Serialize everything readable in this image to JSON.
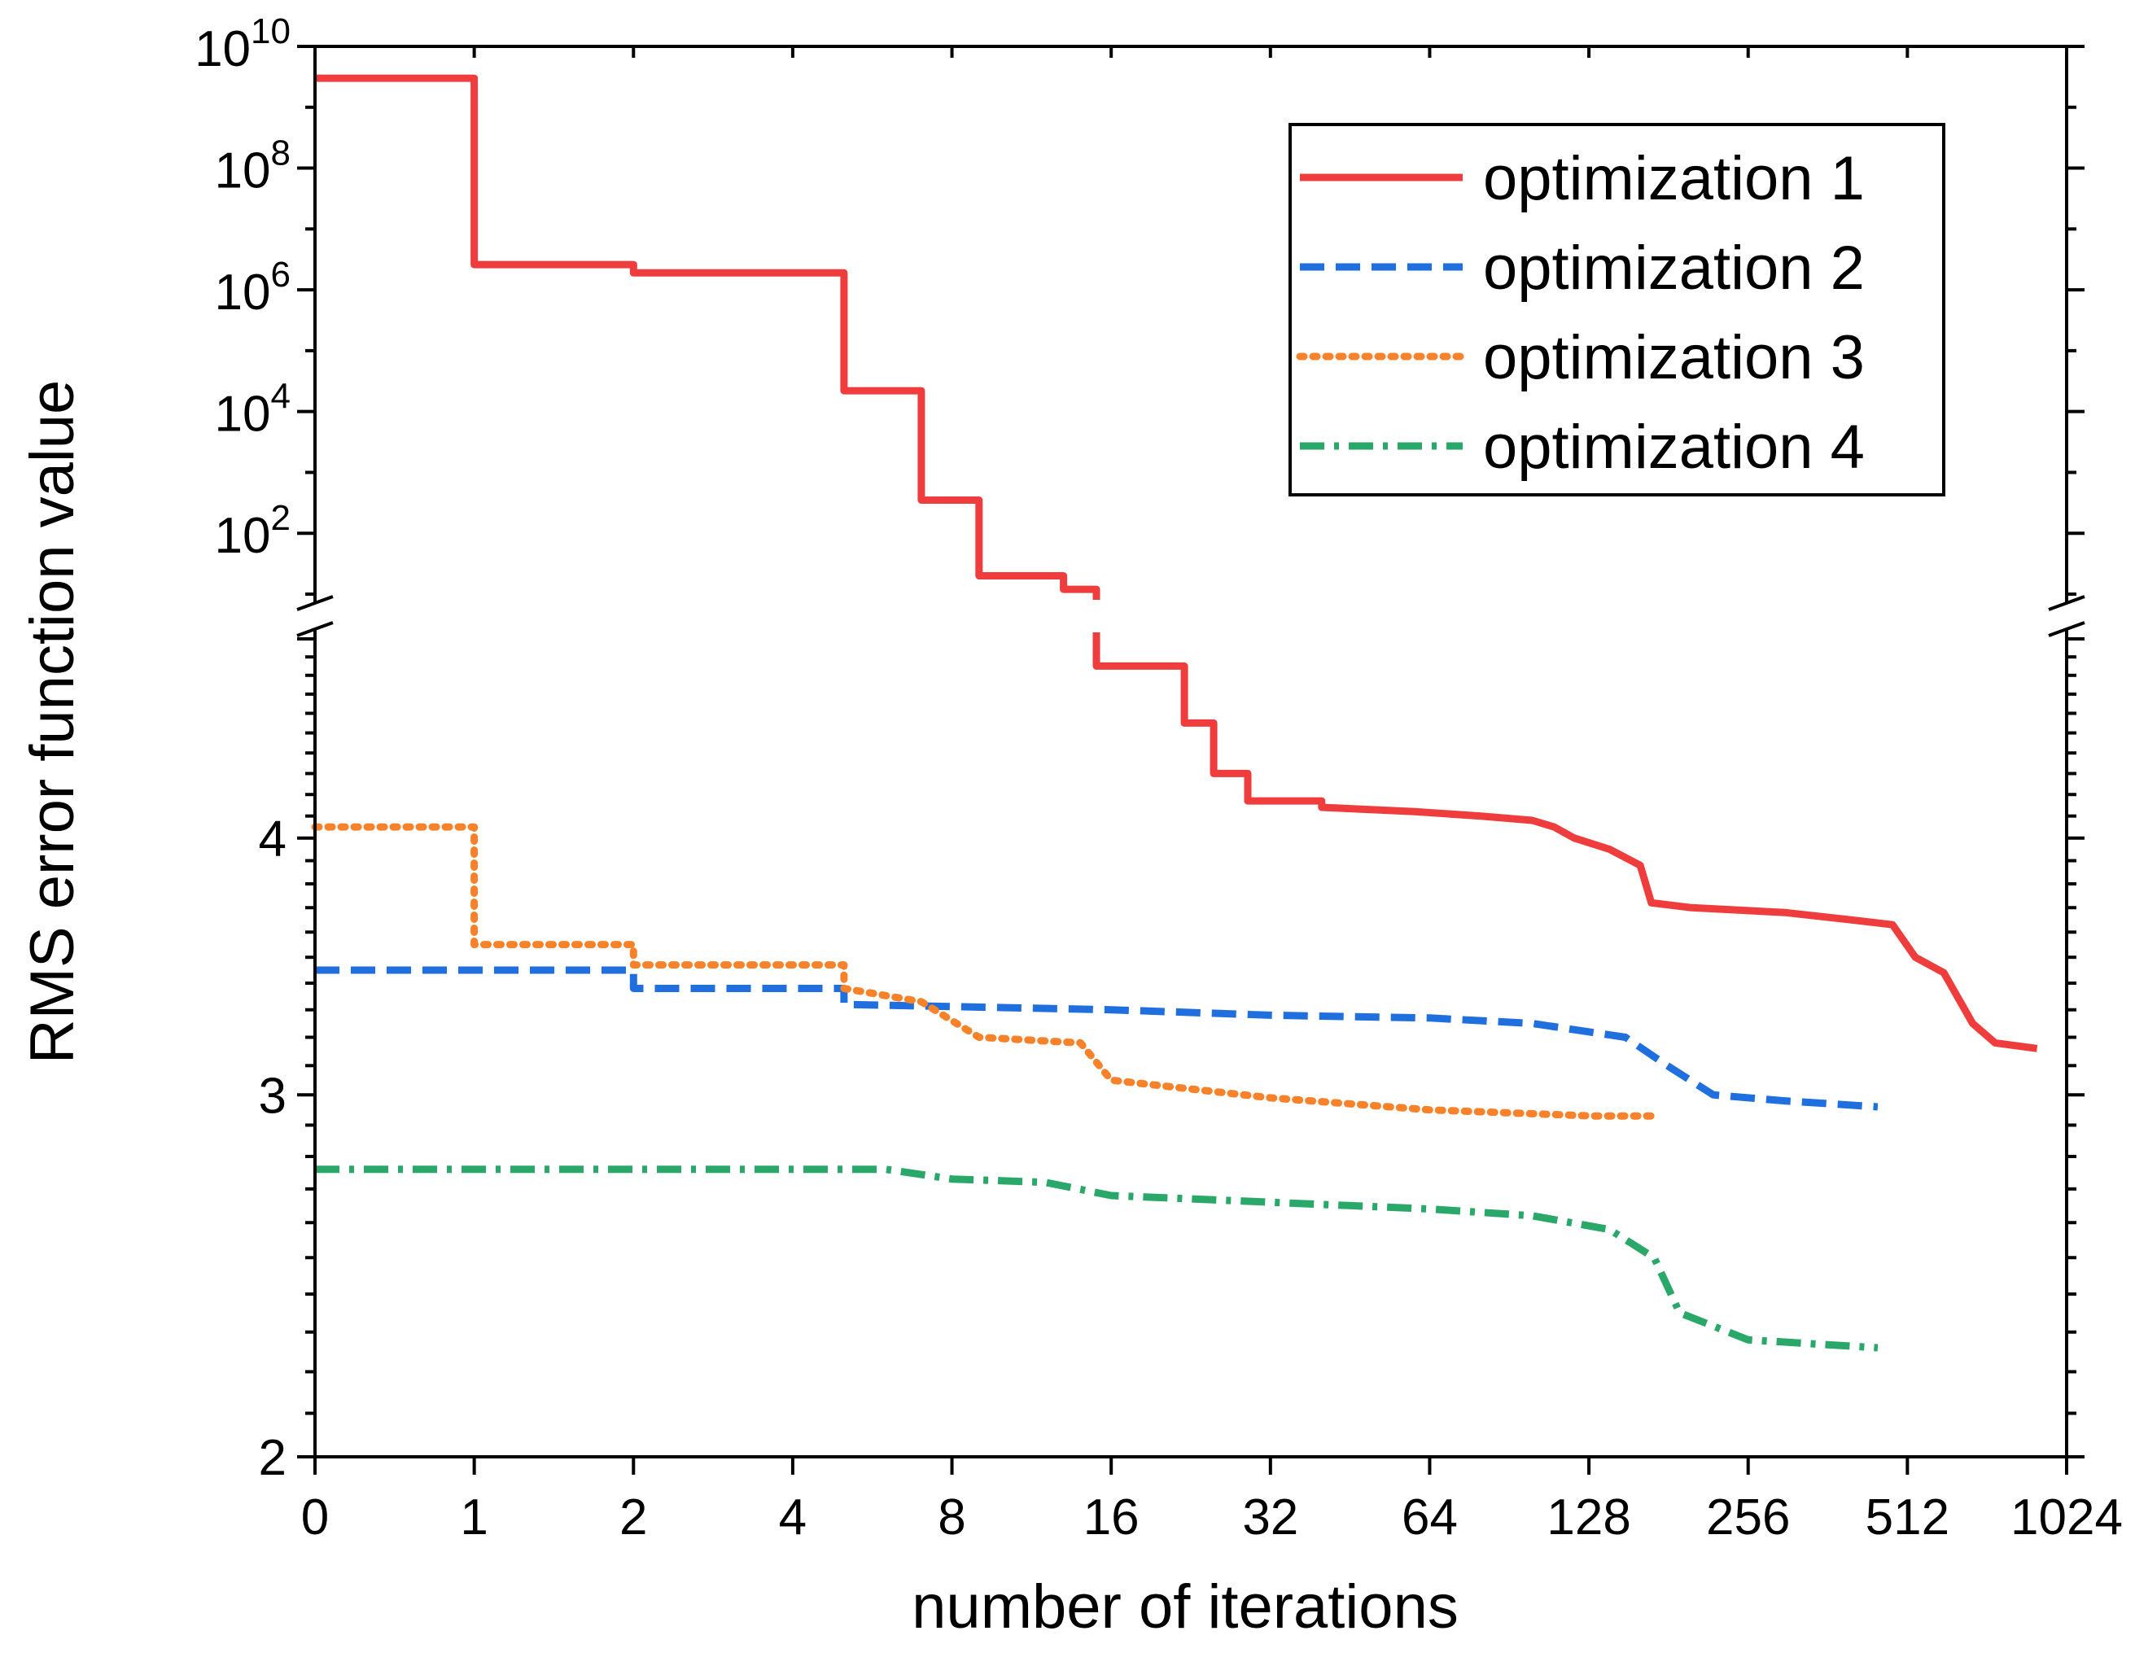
{
  "chart_data": {
    "type": "line",
    "xlabel": "number of iterations",
    "ylabel": "RMS error function value",
    "x_scale": "log2 (0 shown at origin)",
    "x_ticks": [
      "0",
      "1",
      "2",
      "4",
      "8",
      "16",
      "32",
      "64",
      "128",
      "256",
      "512",
      "1024"
    ],
    "xlim": [
      0,
      1024
    ],
    "y_axis_break": true,
    "y_upper": {
      "scale": "log10",
      "ylim": [
        10,
        10000000000
      ],
      "ticks": [
        {
          "label": "10",
          "exp": "10"
        },
        {
          "label": "10",
          "exp": "8"
        },
        {
          "label": "10",
          "exp": "6"
        },
        {
          "label": "10",
          "exp": "4"
        },
        {
          "label": "10",
          "exp": "2"
        }
      ]
    },
    "y_lower": {
      "scale": "log",
      "ylim": [
        2,
        5
      ],
      "ticks": [
        "4",
        "3",
        "2"
      ]
    },
    "legend_position": "top-right",
    "series": [
      {
        "name": "optimization 1",
        "color": "#ef3d3d",
        "style": "solid",
        "points": [
          [
            0,
            3000000000
          ],
          [
            1,
            3000000000
          ],
          [
            1,
            2600000
          ],
          [
            2,
            2600000
          ],
          [
            2,
            1900000
          ],
          [
            5,
            1900000
          ],
          [
            5,
            22000
          ],
          [
            7,
            22000
          ],
          [
            7,
            350
          ],
          [
            9,
            350
          ],
          [
            9,
            20
          ],
          [
            13,
            20
          ],
          [
            13,
            12
          ],
          [
            15,
            12
          ],
          [
            15,
            4.85
          ],
          [
            22,
            4.85
          ],
          [
            22,
            4.55
          ],
          [
            25,
            4.55
          ],
          [
            25,
            4.3
          ],
          [
            29,
            4.3
          ],
          [
            29,
            4.17
          ],
          [
            40,
            4.17
          ],
          [
            40,
            4.14
          ],
          [
            60,
            4.12
          ],
          [
            80,
            4.1
          ],
          [
            100,
            4.08
          ],
          [
            110,
            4.05
          ],
          [
            120,
            4.0
          ],
          [
            140,
            3.95
          ],
          [
            160,
            3.88
          ],
          [
            168,
            3.72
          ],
          [
            200,
            3.7
          ],
          [
            300,
            3.68
          ],
          [
            400,
            3.65
          ],
          [
            480,
            3.63
          ],
          [
            530,
            3.5
          ],
          [
            600,
            3.44
          ],
          [
            680,
            3.25
          ],
          [
            750,
            3.18
          ],
          [
            900,
            3.16
          ]
        ]
      },
      {
        "name": "optimization 2",
        "color": "#1f6fde",
        "style": "dashed",
        "points": [
          [
            0,
            3.45
          ],
          [
            2,
            3.45
          ],
          [
            2,
            3.38
          ],
          [
            5,
            3.38
          ],
          [
            5,
            3.32
          ],
          [
            16,
            3.3
          ],
          [
            32,
            3.28
          ],
          [
            64,
            3.27
          ],
          [
            100,
            3.25
          ],
          [
            150,
            3.2
          ],
          [
            180,
            3.1
          ],
          [
            220,
            3.0
          ],
          [
            300,
            2.98
          ],
          [
            450,
            2.96
          ]
        ]
      },
      {
        "name": "optimization 3",
        "color": "#f7822a",
        "style": "dotted",
        "points": [
          [
            0,
            4.05
          ],
          [
            1,
            4.05
          ],
          [
            1,
            3.55
          ],
          [
            2,
            3.55
          ],
          [
            2,
            3.47
          ],
          [
            5,
            3.47
          ],
          [
            5,
            3.38
          ],
          [
            7,
            3.33
          ],
          [
            9,
            3.2
          ],
          [
            14,
            3.18
          ],
          [
            16,
            3.05
          ],
          [
            32,
            2.99
          ],
          [
            64,
            2.95
          ],
          [
            130,
            2.93
          ],
          [
            170,
            2.93
          ]
        ]
      },
      {
        "name": "optimization 4",
        "color": "#2aa86a",
        "style": "dash-dot",
        "points": [
          [
            0,
            2.76
          ],
          [
            6,
            2.76
          ],
          [
            8,
            2.73
          ],
          [
            12,
            2.72
          ],
          [
            16,
            2.68
          ],
          [
            32,
            2.66
          ],
          [
            64,
            2.64
          ],
          [
            100,
            2.62
          ],
          [
            140,
            2.58
          ],
          [
            170,
            2.5
          ],
          [
            190,
            2.35
          ],
          [
            256,
            2.28
          ],
          [
            450,
            2.26
          ]
        ]
      }
    ]
  }
}
